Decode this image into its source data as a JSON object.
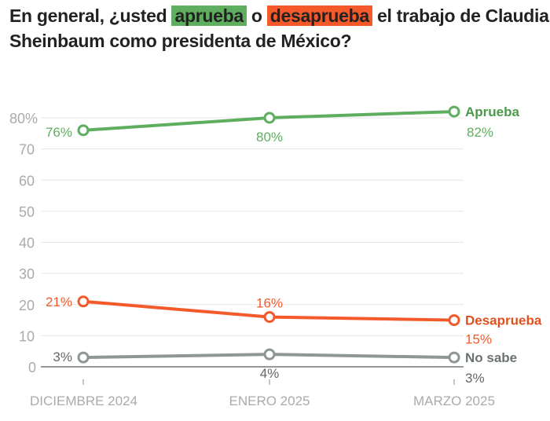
{
  "title": {
    "part1": "En general, ¿usted ",
    "hl1": "aprueba",
    "part2": " o ",
    "hl2": "desaprueba",
    "part3": " el trabajo de Claudia Sheinbaum como presidenta de México?"
  },
  "colors": {
    "aprueba": "#5fae5f",
    "desaprueba": "#f4592a",
    "no_sabe": "#8e9794",
    "axis": "#aaaaaa"
  },
  "chart_data": {
    "type": "line",
    "categories": [
      "DICIEMBRE 2024",
      "ENERO 2025",
      "MARZO 2025"
    ],
    "ylim": [
      0,
      80
    ],
    "yticks": [
      "0",
      "10",
      "20",
      "30",
      "40",
      "50",
      "60",
      "70",
      "80%"
    ],
    "grid": true,
    "series": [
      {
        "name": "Aprueba",
        "values": [
          76,
          80,
          82
        ],
        "labels": [
          "76%",
          "80%",
          "82%"
        ]
      },
      {
        "name": "Desaprueba",
        "values": [
          21,
          16,
          15
        ],
        "labels": [
          "21%",
          "16%",
          "15%"
        ]
      },
      {
        "name": "No sabe",
        "values": [
          3,
          4,
          3
        ],
        "labels": [
          "3%",
          "4%",
          "3%"
        ]
      }
    ]
  }
}
